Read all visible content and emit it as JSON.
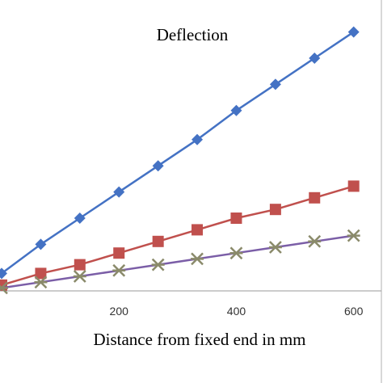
{
  "chart_data": {
    "type": "line",
    "title": "Deflection",
    "xlabel": "Distance from fixed end in mm",
    "ylabel": "",
    "xlim": [
      0,
      650
    ],
    "ylim": [
      0,
      10
    ],
    "x_ticks": [
      "200",
      "400",
      "600"
    ],
    "grid": false,
    "legend": "none",
    "x": [
      0,
      66.7,
      133.3,
      200,
      266.7,
      333.3,
      400,
      466.7,
      533.3,
      600
    ],
    "series": [
      {
        "color": "#4472c4",
        "marker": "diamond",
        "values": [
          0.6,
          1.6,
          2.5,
          3.4,
          4.3,
          5.2,
          6.2,
          7.1,
          8.0,
          8.9
        ]
      },
      {
        "color": "#c0504d",
        "marker": "square",
        "values": [
          0.2,
          0.6,
          0.9,
          1.3,
          1.7,
          2.1,
          2.5,
          2.8,
          3.2,
          3.6
        ]
      },
      {
        "color": "#7b5ea7",
        "marker": "asterisk",
        "values": [
          0.1,
          0.3,
          0.5,
          0.7,
          0.9,
          1.1,
          1.3,
          1.5,
          1.7,
          1.9
        ]
      }
    ]
  }
}
